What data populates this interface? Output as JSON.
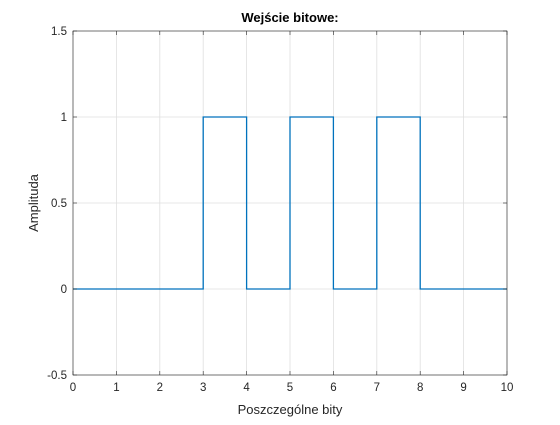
{
  "chart_data": {
    "type": "line",
    "title": "Wejście bitowe:",
    "xlabel": "Poszczególne bity",
    "ylabel": "Amplituda",
    "xlim": [
      0,
      10
    ],
    "ylim": [
      -0.5,
      1.5
    ],
    "xticks": [
      0,
      1,
      2,
      3,
      4,
      5,
      6,
      7,
      8,
      9,
      10
    ],
    "xtick_labels": [
      "0",
      "1",
      "2",
      "3",
      "4",
      "5",
      "6",
      "7",
      "8",
      "9",
      "10"
    ],
    "yticks": [
      -0.5,
      0,
      0.5,
      1,
      1.5
    ],
    "ytick_labels": [
      "-0.5",
      "0",
      "0.5",
      "1",
      "1.5"
    ],
    "grid": true,
    "series": [
      {
        "color": "#0072BD",
        "step": "post",
        "x": [
          0,
          1,
          2,
          3,
          4,
          5,
          6,
          7,
          8,
          9,
          10
        ],
        "y": [
          0,
          0,
          0,
          1,
          0,
          1,
          0,
          1,
          0,
          0,
          0
        ]
      }
    ]
  }
}
